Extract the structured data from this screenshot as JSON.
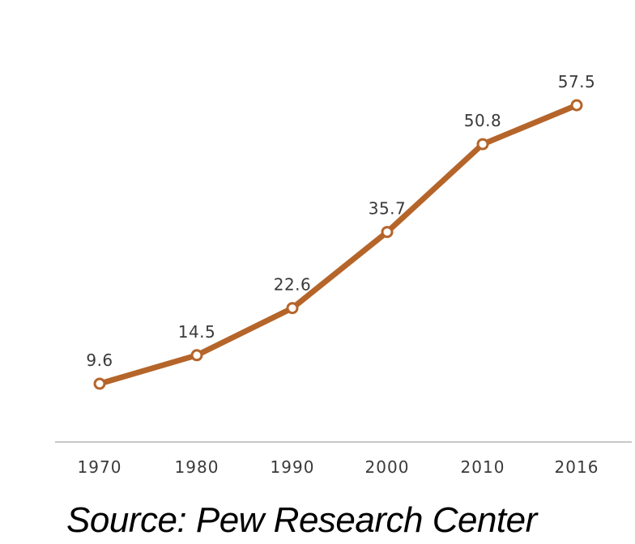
{
  "source": "Source: Pew Research Center",
  "colors": {
    "line": "#b5652a",
    "marker_fill": "#ffffff",
    "axis": "#c8c8c8",
    "text": "#3a3a3a"
  },
  "chart_data": {
    "type": "line",
    "categories": [
      "1970",
      "1980",
      "1990",
      "2000",
      "2010",
      "2016"
    ],
    "series": [
      {
        "values": [
          9.6,
          14.5,
          22.6,
          35.7,
          50.8,
          57.5
        ],
        "data_labels": [
          "9.6",
          "14.5",
          "22.6",
          "35.7",
          "50.8",
          "57.5"
        ]
      }
    ],
    "title": "",
    "xlabel": "",
    "ylabel": "",
    "ylim": [
      0,
      65
    ],
    "grid": false,
    "legend": "none"
  }
}
